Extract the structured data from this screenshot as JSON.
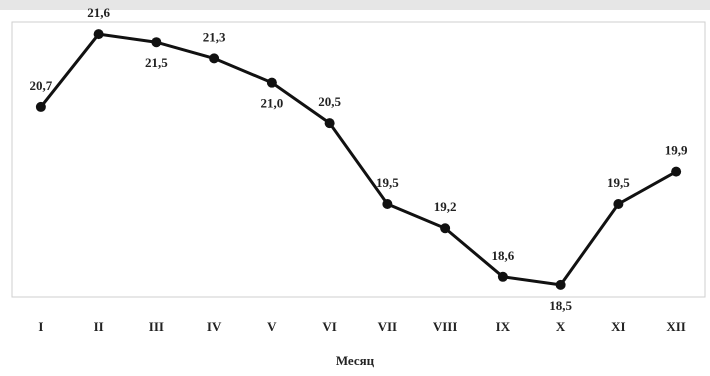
{
  "chart_data": {
    "type": "line",
    "x_label": "Месяц",
    "categories": [
      "I",
      "II",
      "III",
      "IV",
      "V",
      "VI",
      "VII",
      "VIII",
      "IX",
      "X",
      "XI",
      "XII"
    ],
    "values": [
      20.7,
      21.6,
      21.5,
      21.3,
      21.0,
      20.5,
      19.5,
      19.2,
      18.6,
      18.5,
      19.5,
      19.9
    ],
    "value_labels": [
      "20,7",
      "21,6",
      "21,5",
      "21,3",
      "21,0",
      "20,5",
      "19,5",
      "19,2",
      "18,6",
      "18,5",
      "19,5",
      "19,9"
    ],
    "color": "#111111",
    "ylim": [
      18.35,
      21.75
    ]
  }
}
